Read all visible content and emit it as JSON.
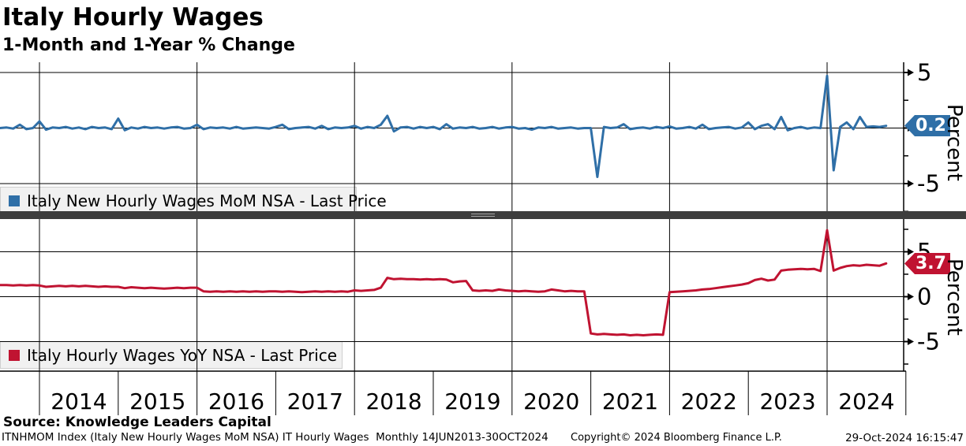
{
  "header": {
    "title": "Italy Hourly Wages",
    "subtitle": "1-Month and 1-Year % Change"
  },
  "colors": {
    "mom_line": "#2f6fa7",
    "yoy_line": "#c01331",
    "separator_bar": "#3d3d3d",
    "legend_bg": "#f1f1f1",
    "grid": "#000000"
  },
  "x_axis": {
    "year_labels": [
      "2014",
      "2015",
      "2016",
      "2017",
      "2018",
      "2019",
      "2020",
      "2021",
      "2022",
      "2023",
      "2024"
    ],
    "grid_years": [
      2014,
      2016,
      2018,
      2020,
      2022,
      2024
    ],
    "boundary_years": [
      2014,
      2015,
      2016,
      2017,
      2018,
      2019,
      2020,
      2021,
      2022,
      2023,
      2024,
      2025
    ]
  },
  "chart_data": [
    {
      "type": "line",
      "id": "mom",
      "panel": "top",
      "legend": "Italy New Hourly Wages MoM NSA - Last Price",
      "axis_label": "Percent",
      "last_price": "0.2",
      "color": "#2f6fa7",
      "ylim": [
        -7.5,
        6.2
      ],
      "yticks_major": [
        {
          "label": "5",
          "value": 5
        },
        {
          "label": "0",
          "value": 0
        },
        {
          "label": "-5",
          "value": -5
        }
      ],
      "yticks_minor": [
        2.5,
        -2.5,
        -7.5
      ],
      "series": {
        "name": "Italy New Hourly Wages MoM NSA",
        "frequency": "Monthly",
        "start_year": 2013,
        "start_month": 7,
        "values_by_year": {
          "2013": [
            0.0,
            0.05,
            -0.05,
            0.3,
            -0.1,
            0.0
          ],
          "2014": [
            0.6,
            -0.15,
            0.05,
            0.0,
            0.1,
            -0.05,
            0.05,
            -0.1,
            0.1,
            0.0,
            0.05,
            -0.1
          ],
          "2015": [
            0.85,
            -0.2,
            0.05,
            -0.05,
            0.1,
            0.0,
            0.05,
            -0.05,
            0.05,
            0.1,
            -0.05,
            0.0
          ],
          "2016": [
            0.3,
            -0.1,
            0.05,
            0.0,
            0.05,
            -0.05,
            0.1,
            -0.05,
            0.0,
            0.05,
            0.0,
            -0.05
          ],
          "2017": [
            0.1,
            0.3,
            -0.1,
            0.0,
            0.05,
            0.1,
            -0.05,
            0.2,
            -0.1,
            0.05,
            0.0,
            0.05
          ],
          "2018": [
            0.2,
            -0.05,
            0.1,
            0.0,
            0.3,
            1.1,
            -0.3,
            0.05,
            0.1,
            -0.05,
            0.1,
            0.0
          ],
          "2019": [
            0.1,
            -0.1,
            0.35,
            -0.05,
            0.05,
            0.0,
            0.1,
            -0.05,
            0.0,
            0.1,
            -0.05,
            0.05
          ],
          "2020": [
            0.1,
            -0.05,
            0.0,
            -0.15,
            0.05,
            0.0,
            0.1,
            -0.05,
            0.0,
            0.05,
            -0.05,
            0.0
          ],
          "2021": [
            0.0,
            -4.4,
            0.1,
            0.0,
            0.05,
            0.35,
            -0.1,
            0.0,
            0.05,
            -0.05,
            0.1,
            0.0
          ],
          "2022": [
            0.15,
            -0.05,
            0.0,
            0.1,
            -0.05,
            0.3,
            -0.1,
            0.0,
            0.05,
            0.1,
            -0.05,
            0.05
          ],
          "2023": [
            0.5,
            -0.1,
            0.2,
            0.35,
            -0.1,
            1.0,
            -0.2,
            0.0,
            0.1,
            -0.05,
            0.05,
            0.0
          ],
          "2024": [
            4.7,
            -3.8,
            0.1,
            0.5,
            -0.1,
            1.0,
            0.1,
            0.15,
            0.1,
            0.2
          ]
        }
      }
    },
    {
      "type": "line",
      "id": "yoy",
      "panel": "bottom",
      "legend": "Italy Hourly Wages YoY NSA - Last Price",
      "axis_label": "Percent",
      "last_price": "3.7",
      "color": "#c01331",
      "ylim": [
        -8.5,
        8.5
      ],
      "yticks_major": [
        {
          "label": "5",
          "value": 5
        },
        {
          "label": "0",
          "value": 0
        },
        {
          "label": "-5",
          "value": -5
        }
      ],
      "yticks_minor": [
        7.5,
        2.5,
        -2.5,
        -7.5
      ],
      "series": {
        "name": "Italy Hourly Wages YoY NSA",
        "frequency": "Monthly",
        "start_year": 2013,
        "start_month": 7,
        "values_by_year": {
          "2013": [
            1.3,
            1.3,
            1.25,
            1.3,
            1.25,
            1.3
          ],
          "2014": [
            1.25,
            1.1,
            1.15,
            1.2,
            1.15,
            1.2,
            1.15,
            1.2,
            1.15,
            1.1,
            1.15,
            1.1
          ],
          "2015": [
            1.1,
            0.95,
            1.05,
            1.0,
            0.95,
            1.0,
            0.95,
            0.9,
            0.95,
            1.0,
            0.95,
            1.0
          ],
          "2016": [
            1.0,
            0.6,
            0.55,
            0.6,
            0.55,
            0.6,
            0.55,
            0.6,
            0.55,
            0.6,
            0.55,
            0.6
          ],
          "2017": [
            0.6,
            0.55,
            0.6,
            0.55,
            0.5,
            0.55,
            0.6,
            0.55,
            0.6,
            0.55,
            0.6,
            0.55
          ],
          "2018": [
            0.7,
            0.65,
            0.7,
            0.75,
            1.0,
            2.1,
            1.95,
            2.0,
            1.95,
            1.95,
            1.9,
            1.95
          ],
          "2019": [
            1.9,
            1.95,
            1.9,
            1.6,
            1.7,
            1.75,
            0.7,
            0.65,
            0.7,
            0.65,
            0.8,
            0.7
          ],
          "2020": [
            0.65,
            0.6,
            0.65,
            0.6,
            0.55,
            0.6,
            0.8,
            0.7,
            0.6,
            0.65,
            0.6,
            0.6
          ],
          "2021": [
            -4.1,
            -4.2,
            -4.15,
            -4.2,
            -4.25,
            -4.2,
            -4.3,
            -4.25,
            -4.3,
            -4.25,
            -4.2,
            -4.25
          ],
          "2022": [
            0.5,
            0.55,
            0.6,
            0.65,
            0.7,
            0.8,
            0.85,
            0.95,
            1.05,
            1.15,
            1.25,
            1.35
          ],
          "2023": [
            1.5,
            1.85,
            2.0,
            1.8,
            1.9,
            2.9,
            3.0,
            3.05,
            3.1,
            3.05,
            3.1,
            2.85
          ],
          "2024": [
            7.4,
            2.9,
            3.2,
            3.4,
            3.5,
            3.45,
            3.55,
            3.5,
            3.45,
            3.7
          ]
        }
      }
    }
  ],
  "footer": {
    "source": "Source: Knowledge Leaders Capital",
    "ticker_line": "ITNHMOM Index (Italy New Hourly Wages MoM NSA) IT Hourly Wages  Monthly 14JUN2013-30OCT2024",
    "copyright": "Copyright© 2024 Bloomberg Finance L.P.",
    "timestamp": "29-Oct-2024 16:15:47"
  }
}
